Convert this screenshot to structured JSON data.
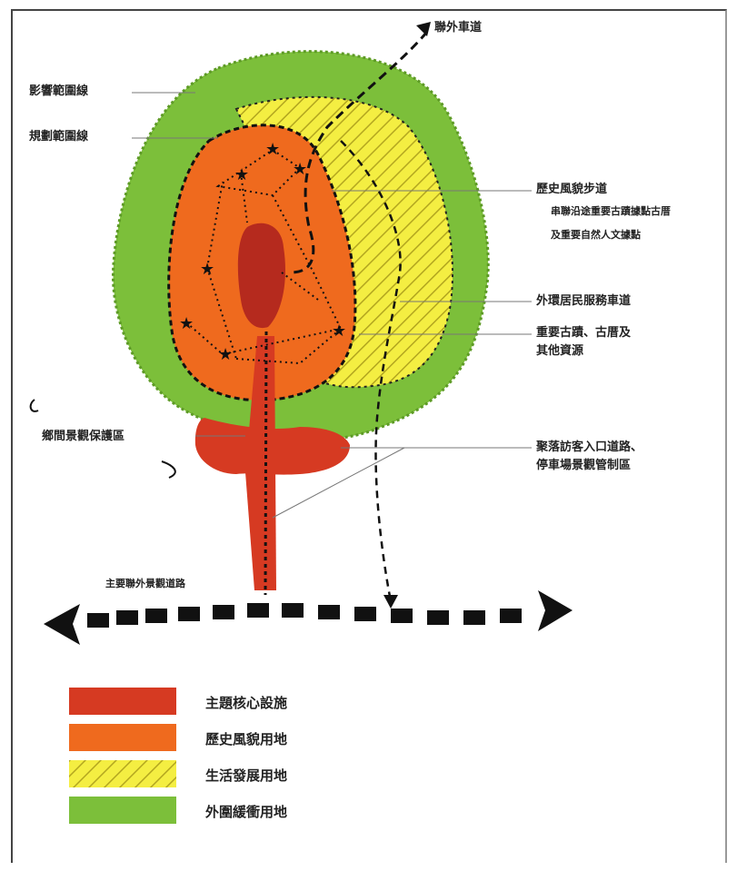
{
  "labels": {
    "external_road": "聯外車道",
    "influence_boundary": "影響範圍線",
    "planning_boundary": "規劃範圍線",
    "historic_trail": "歷史風貌步道",
    "historic_trail_desc_1": "串聯沿途重要古蹟據點古厝",
    "historic_trail_desc_2": "及重要自然人文據點",
    "resident_road": "外環居民服務車道",
    "heritage_1": "重要古蹟、古厝及",
    "heritage_2": "其他資源",
    "rural_landscape": "鄉間景觀保護區",
    "visitor_entry_1": "聚落訪客入口道路、",
    "visitor_entry_2": "停車場景觀管制區",
    "main_road": "主要聯外景觀道路"
  },
  "legend": [
    {
      "label": "主題核心設施",
      "color": "#d63a22"
    },
    {
      "label": "歷史風貌用地",
      "color": "#ef6a1e"
    },
    {
      "label": "生活發展用地",
      "color": "#f4ee42"
    },
    {
      "label": "外圍緩衝用地",
      "color": "#7cbf3a"
    }
  ],
  "colors": {
    "core": "#c8311e",
    "historic": "#ef6a1e",
    "living": "#f4ee42",
    "buffer": "#7cbf3a",
    "line": "#111111"
  }
}
